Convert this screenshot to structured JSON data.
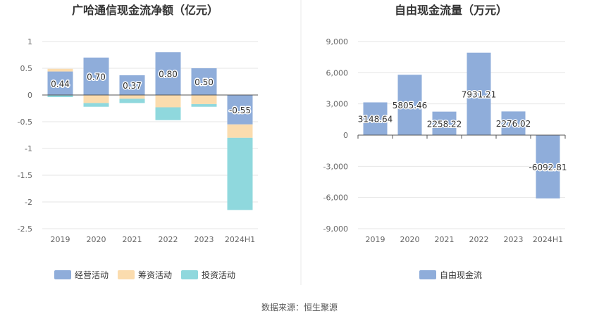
{
  "source_label": "数据来源：恒生聚源",
  "colors": {
    "operating": "#8fadda",
    "financing": "#fbdcae",
    "investing": "#8fd8dd",
    "free_cash_flow": "#8fadda"
  },
  "chart_data": [
    {
      "type": "bar",
      "stacked": true,
      "title": "广哈通信现金流净额（亿元）",
      "categories": [
        "2019",
        "2020",
        "2021",
        "2022",
        "2023",
        "2024H1"
      ],
      "ylim": [
        -2.5,
        1
      ],
      "yticks": [
        "1",
        "0.5",
        "0",
        "-0.5",
        "-1",
        "-1.5",
        "-2",
        "-2.5"
      ],
      "grid": true,
      "legend_position": "bottom",
      "series": [
        {
          "name": "经营活动",
          "values": [
            0.44,
            0.7,
            0.37,
            0.8,
            0.5,
            -0.55
          ],
          "labels": [
            "0.44",
            "0.70",
            "0.37",
            "0.80",
            "0.50",
            "-0.55"
          ]
        },
        {
          "name": "筹资活动",
          "values": [
            0.05,
            -0.15,
            -0.07,
            -0.23,
            -0.17,
            -0.25
          ]
        },
        {
          "name": "投资活动",
          "values": [
            -0.04,
            -0.07,
            -0.08,
            -0.24,
            -0.05,
            -1.35
          ]
        }
      ]
    },
    {
      "type": "bar",
      "title": "自由现金流量（万元）",
      "categories": [
        "2019",
        "2020",
        "2021",
        "2022",
        "2023",
        "2024H1"
      ],
      "ylim": [
        -9000,
        9000
      ],
      "yticks": [
        "9,000",
        "6,000",
        "3,000",
        "0",
        "-3,000",
        "-6,000",
        "-9,000"
      ],
      "grid": true,
      "legend_position": "bottom",
      "series": [
        {
          "name": "自由现金流",
          "values": [
            3148.64,
            5805.46,
            2258.22,
            7931.21,
            2276.02,
            -6092.81
          ],
          "labels": [
            "3148.64",
            "5805.46",
            "2258.22",
            "7931.21",
            "2276.02",
            "-6092.81"
          ]
        }
      ]
    }
  ]
}
